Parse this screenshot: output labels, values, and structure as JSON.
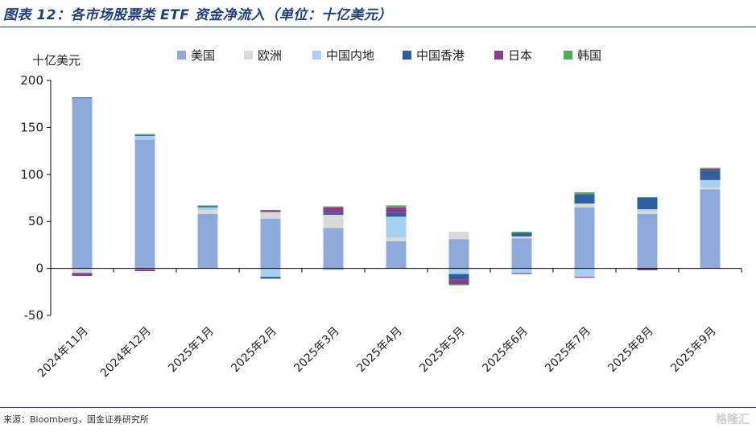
{
  "header": {
    "title": "图表 12：各市场股票类 ETF 资金净流入（单位：十亿美元）"
  },
  "footer": {
    "source": "来源：Bloomberg，国金证券研究所",
    "watermark": "格隆汇"
  },
  "colors": {
    "us": "#8eaadb",
    "europe": "#d9d9d9",
    "china_mainland": "#a9d0f0",
    "hongkong": "#2e5f9e",
    "japan": "#8e3a8e",
    "korea": "#4caf50",
    "axis": "#000000"
  },
  "chart_data": {
    "type": "bar",
    "stacked": true,
    "ylabel": "十亿美元",
    "ylim": [
      -50,
      200
    ],
    "yticks": [
      -50,
      0,
      50,
      100,
      150,
      200
    ],
    "legend_position": "top",
    "categories": [
      "2024年11月",
      "2024年12月",
      "2025年1月",
      "2025年2月",
      "2025年3月",
      "2025年4月",
      "2025年5月",
      "2025年6月",
      "2025年7月",
      "2025年8月",
      "2025年9月"
    ],
    "series": [
      {
        "key": "us",
        "name": "美国",
        "values": [
          181,
          137,
          58,
          53,
          43,
          29,
          31,
          32,
          65,
          58,
          84
        ]
      },
      {
        "key": "europe",
        "name": "欧洲",
        "values": [
          -4,
          -1,
          4,
          7,
          14,
          4,
          8,
          2,
          4,
          3,
          2
        ]
      },
      {
        "key": "china_mainland",
        "name": "中国内地",
        "values": [
          -1,
          4,
          3,
          -9,
          -2,
          22,
          -6,
          -5,
          -9,
          2,
          8
        ]
      },
      {
        "key": "hongkong",
        "name": "中国香港",
        "values": [
          1,
          1,
          1,
          -2,
          2,
          4,
          -6,
          4,
          10,
          12,
          10
        ]
      },
      {
        "key": "japan",
        "name": "日本",
        "values": [
          -3,
          -2,
          0,
          2,
          6,
          6,
          -5,
          -1,
          -1,
          -2,
          2
        ]
      },
      {
        "key": "korea",
        "name": "韩国",
        "values": [
          0,
          1,
          1,
          0,
          1,
          2,
          -1,
          1,
          2,
          1,
          1
        ]
      }
    ]
  }
}
